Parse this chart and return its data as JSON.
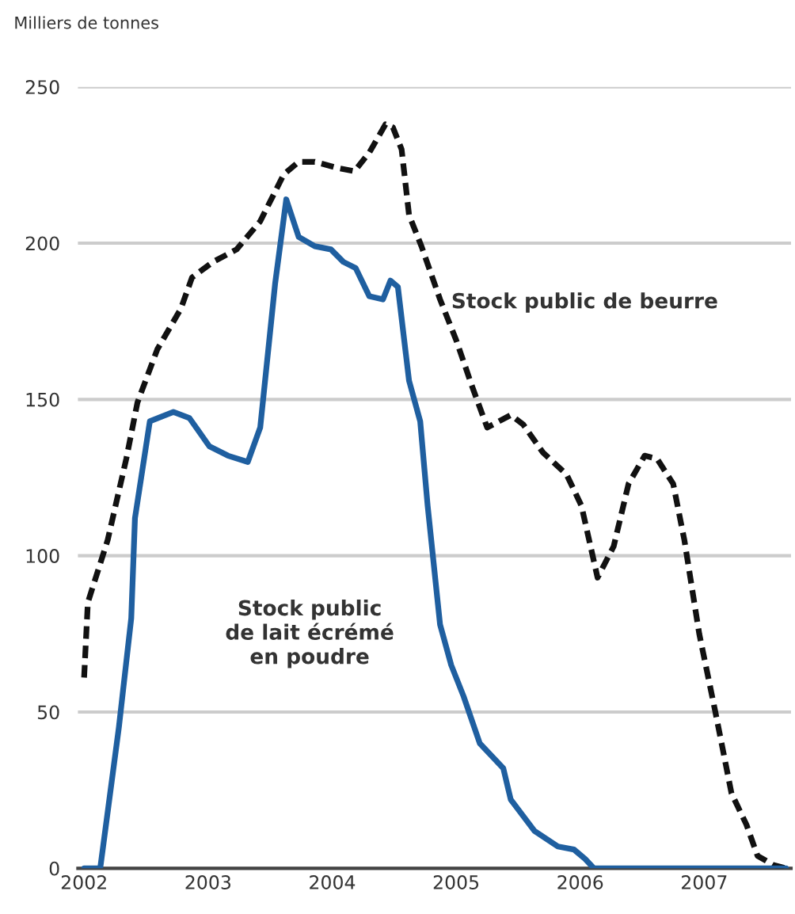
{
  "chart_data": {
    "type": "line",
    "ylabel": "Milliers de tonnes",
    "xlim": [
      2001.95,
      2007.7
    ],
    "ylim": [
      0,
      250
    ],
    "xticks": [
      2002,
      2003,
      2004,
      2005,
      2006,
      2007
    ],
    "yticks": [
      0,
      50,
      100,
      150,
      200,
      250
    ],
    "grid": "y",
    "series": [
      {
        "color": "#111111",
        "line_style": "dashed",
        "x": [
          2002.0,
          2002.03,
          2002.19,
          2002.34,
          2002.43,
          2002.59,
          2002.78,
          2002.87,
          2003.04,
          2003.23,
          2003.42,
          2003.61,
          2003.73,
          2003.86,
          2004.05,
          2004.18,
          2004.3,
          2004.43,
          2004.49,
          2004.56,
          2004.62,
          2004.72,
          2004.87,
          2005.0,
          2005.13,
          2005.25,
          2005.44,
          2005.54,
          2005.7,
          2005.89,
          2006.01,
          2006.14,
          2006.27,
          2006.39,
          2006.52,
          2006.62,
          2006.75,
          2006.84,
          2006.96,
          2007.09,
          2007.22,
          2007.34,
          2007.43,
          2007.56,
          2007.66
        ],
        "values": [
          61,
          85,
          105,
          131,
          149,
          166,
          179,
          189,
          194,
          198,
          207,
          222,
          226,
          226,
          224,
          223,
          229,
          238,
          237,
          230,
          209,
          199,
          182,
          169,
          154,
          141,
          145,
          142,
          133,
          126,
          116,
          93,
          103,
          123,
          132,
          131,
          123,
          105,
          75,
          50,
          24,
          14,
          4,
          1,
          0
        ]
      },
      {
        "color": "#1f5fa0",
        "line_style": "solid",
        "x": [
          2002.0,
          2002.13,
          2002.28,
          2002.38,
          2002.41,
          2002.53,
          2002.72,
          2002.85,
          2003.01,
          2003.16,
          2003.32,
          2003.42,
          2003.54,
          2003.63,
          2003.73,
          2003.86,
          2003.99,
          2004.09,
          2004.19,
          2004.3,
          2004.41,
          2004.47,
          2004.53,
          2004.62,
          2004.71,
          2004.77,
          2004.87,
          2004.96,
          2005.06,
          2005.19,
          2005.38,
          2005.44,
          2005.63,
          2005.82,
          2005.95,
          2006.04,
          2006.11,
          2007.66
        ],
        "values": [
          0,
          0,
          45,
          80,
          112,
          143,
          146,
          144,
          135,
          132,
          130,
          141,
          187,
          214,
          202,
          199,
          198,
          194,
          192,
          183,
          182,
          188,
          186,
          156,
          143,
          116,
          78,
          65,
          55,
          40,
          32,
          22,
          12,
          7,
          6,
          3,
          0,
          0
        ]
      }
    ],
    "annotations": [
      {
        "text": "Stock public de beurre",
        "x": 2004.96,
        "y": 181
      },
      "Stock public\nde lait écrémé\nen poudre"
    ]
  }
}
